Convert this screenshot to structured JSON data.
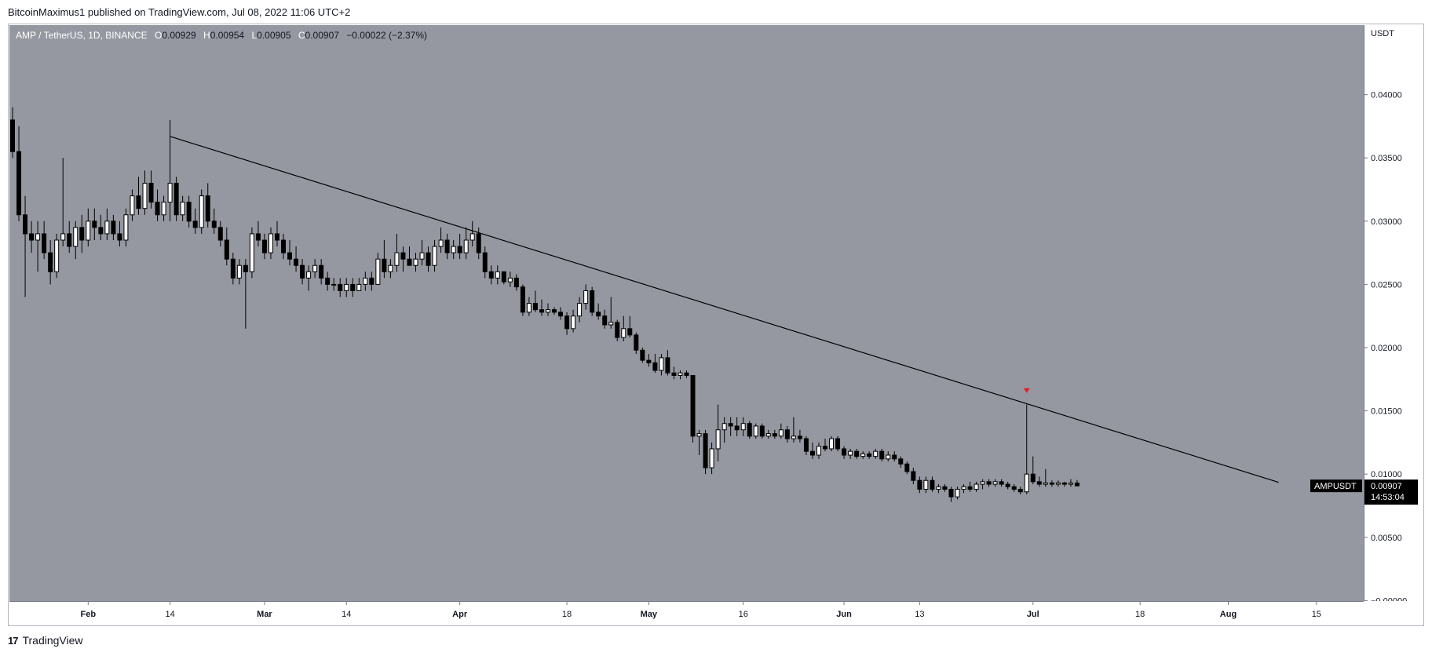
{
  "header": {
    "publisher_text": "BitcoinMaximus1 published on TradingView.com, Jul 08, 2022 11:06 UTC+2"
  },
  "legend": {
    "symbol": "AMP / TetherUS, 1D, BINANCE",
    "o_label": "O",
    "o_value": "0.00929",
    "h_label": "H",
    "h_value": "0.00954",
    "l_label": "L",
    "l_value": "0.00905",
    "c_label": "C",
    "c_value": "0.00907",
    "change": "−0.00022 (−2.37%)"
  },
  "price_scale": {
    "currency": "USDT"
  },
  "price_label": {
    "ticker": "AMPUSDT",
    "price": "0.00907",
    "countdown": "14:53:04"
  },
  "footer": {
    "brand": "TradingView",
    "logo_mark": "17"
  },
  "colors": {
    "plot_bg": "#9598a1",
    "bull_body": "#ffffff",
    "bear_body": "#000000",
    "wick": "#000000",
    "trendline": "#000000",
    "marker": "#e02020",
    "price_label_bg": "#000000"
  },
  "chart_data": {
    "type": "candlestick",
    "series_note": "",
    "ylim": [
      -4e-05,
      0.0455
    ],
    "y_ticks": [
      "0.04000",
      "0.03500",
      "0.03000",
      "0.02500",
      "0.02000",
      "0.01500",
      "0.01000",
      "0.00500",
      "−0.00000"
    ],
    "y_tick_values": [
      0.04,
      0.035,
      0.03,
      0.025,
      0.02,
      0.015,
      0.01,
      0.005,
      0.0
    ],
    "x_ticks": [
      "Feb",
      "14",
      "Mar",
      "14",
      "Apr",
      "18",
      "May",
      "16",
      "Jun",
      "13",
      "Jul",
      "18",
      "Aug",
      "15"
    ],
    "x_tick_dates": [
      "2022-02-01",
      "2022-02-14",
      "2022-03-01",
      "2022-03-14",
      "2022-04-01",
      "2022-04-18",
      "2022-05-01",
      "2022-05-16",
      "2022-06-01",
      "2022-06-13",
      "2022-07-01",
      "2022-07-18",
      "2022-08-01",
      "2022-08-15"
    ],
    "x_range": [
      "2022-01-20",
      "2022-08-23"
    ],
    "ohlc": [
      [
        "2022-01-20",
        0.038,
        0.039,
        0.035,
        0.0355
      ],
      [
        "2022-01-21",
        0.0355,
        0.0375,
        0.03,
        0.0305
      ],
      [
        "2022-01-22",
        0.0305,
        0.032,
        0.024,
        0.029
      ],
      [
        "2022-01-23",
        0.029,
        0.03,
        0.0275,
        0.0285
      ],
      [
        "2022-01-24",
        0.0285,
        0.03,
        0.026,
        0.029
      ],
      [
        "2022-01-25",
        0.029,
        0.03,
        0.027,
        0.0275
      ],
      [
        "2022-01-26",
        0.0275,
        0.0285,
        0.025,
        0.026
      ],
      [
        "2022-01-27",
        0.026,
        0.029,
        0.0255,
        0.0285
      ],
      [
        "2022-01-28",
        0.0285,
        0.035,
        0.028,
        0.029
      ],
      [
        "2022-01-29",
        0.029,
        0.03,
        0.0275,
        0.028
      ],
      [
        "2022-01-30",
        0.028,
        0.03,
        0.027,
        0.0295
      ],
      [
        "2022-01-31",
        0.0295,
        0.0305,
        0.0275,
        0.0285
      ],
      [
        "2022-02-01",
        0.0285,
        0.031,
        0.028,
        0.03
      ],
      [
        "2022-02-02",
        0.03,
        0.031,
        0.0285,
        0.0295
      ],
      [
        "2022-02-03",
        0.0295,
        0.0305,
        0.0285,
        0.029
      ],
      [
        "2022-02-04",
        0.029,
        0.031,
        0.0285,
        0.03
      ],
      [
        "2022-02-05",
        0.03,
        0.0305,
        0.0285,
        0.029
      ],
      [
        "2022-02-06",
        0.029,
        0.03,
        0.028,
        0.0285
      ],
      [
        "2022-02-07",
        0.0285,
        0.031,
        0.028,
        0.0305
      ],
      [
        "2022-02-08",
        0.0305,
        0.0325,
        0.03,
        0.032
      ],
      [
        "2022-02-09",
        0.032,
        0.0335,
        0.0305,
        0.031
      ],
      [
        "2022-02-10",
        0.031,
        0.034,
        0.0305,
        0.033
      ],
      [
        "2022-02-11",
        0.033,
        0.034,
        0.031,
        0.0315
      ],
      [
        "2022-02-12",
        0.0315,
        0.0325,
        0.03,
        0.0305
      ],
      [
        "2022-02-13",
        0.0305,
        0.032,
        0.03,
        0.0315
      ],
      [
        "2022-02-14",
        0.0315,
        0.038,
        0.03,
        0.033
      ],
      [
        "2022-02-15",
        0.033,
        0.0335,
        0.03,
        0.0305
      ],
      [
        "2022-02-16",
        0.0305,
        0.032,
        0.03,
        0.0315
      ],
      [
        "2022-02-17",
        0.0315,
        0.032,
        0.0295,
        0.03
      ],
      [
        "2022-02-18",
        0.03,
        0.031,
        0.029,
        0.0295
      ],
      [
        "2022-02-19",
        0.0295,
        0.0325,
        0.029,
        0.032
      ],
      [
        "2022-02-20",
        0.032,
        0.033,
        0.0295,
        0.03
      ],
      [
        "2022-02-21",
        0.03,
        0.031,
        0.029,
        0.0295
      ],
      [
        "2022-02-22",
        0.0295,
        0.03,
        0.028,
        0.0285
      ],
      [
        "2022-02-23",
        0.0285,
        0.0295,
        0.0265,
        0.027
      ],
      [
        "2022-02-24",
        0.027,
        0.0275,
        0.025,
        0.0255
      ],
      [
        "2022-02-25",
        0.0255,
        0.027,
        0.025,
        0.0265
      ],
      [
        "2022-02-26",
        0.0265,
        0.027,
        0.0215,
        0.026
      ],
      [
        "2022-02-27",
        0.026,
        0.0295,
        0.0255,
        0.029
      ],
      [
        "2022-02-28",
        0.029,
        0.03,
        0.028,
        0.0285
      ],
      [
        "2022-03-01",
        0.0285,
        0.029,
        0.027,
        0.0275
      ],
      [
        "2022-03-02",
        0.0275,
        0.0295,
        0.027,
        0.029
      ],
      [
        "2022-03-03",
        0.029,
        0.03,
        0.028,
        0.0285
      ],
      [
        "2022-03-04",
        0.0285,
        0.029,
        0.027,
        0.0275
      ],
      [
        "2022-03-05",
        0.0275,
        0.0285,
        0.0265,
        0.027
      ],
      [
        "2022-03-06",
        0.027,
        0.028,
        0.026,
        0.0265
      ],
      [
        "2022-03-07",
        0.0265,
        0.027,
        0.025,
        0.0255
      ],
      [
        "2022-03-08",
        0.0255,
        0.0265,
        0.0245,
        0.026
      ],
      [
        "2022-03-09",
        0.026,
        0.027,
        0.0255,
        0.0265
      ],
      [
        "2022-03-10",
        0.0265,
        0.027,
        0.025,
        0.0255
      ],
      [
        "2022-03-11",
        0.0255,
        0.026,
        0.0245,
        0.025
      ],
      [
        "2022-03-12",
        0.025,
        0.0255,
        0.0245,
        0.025
      ],
      [
        "2022-03-13",
        0.025,
        0.0255,
        0.024,
        0.0245
      ],
      [
        "2022-03-14",
        0.0245,
        0.0255,
        0.024,
        0.025
      ],
      [
        "2022-03-15",
        0.025,
        0.0255,
        0.024,
        0.0245
      ],
      [
        "2022-03-16",
        0.0245,
        0.0255,
        0.0245,
        0.025
      ],
      [
        "2022-03-17",
        0.025,
        0.026,
        0.0245,
        0.0255
      ],
      [
        "2022-03-18",
        0.0255,
        0.026,
        0.0245,
        0.025
      ],
      [
        "2022-03-19",
        0.025,
        0.0275,
        0.025,
        0.027
      ],
      [
        "2022-03-20",
        0.027,
        0.0285,
        0.0255,
        0.026
      ],
      [
        "2022-03-21",
        0.026,
        0.027,
        0.0255,
        0.0265
      ],
      [
        "2022-03-22",
        0.0265,
        0.029,
        0.026,
        0.0275
      ],
      [
        "2022-03-23",
        0.0275,
        0.028,
        0.026,
        0.027
      ],
      [
        "2022-03-24",
        0.027,
        0.028,
        0.0265,
        0.0265
      ],
      [
        "2022-03-25",
        0.0265,
        0.0275,
        0.026,
        0.027
      ],
      [
        "2022-03-26",
        0.027,
        0.0285,
        0.0265,
        0.0275
      ],
      [
        "2022-03-27",
        0.0275,
        0.028,
        0.026,
        0.0265
      ],
      [
        "2022-03-28",
        0.0265,
        0.0285,
        0.026,
        0.028
      ],
      [
        "2022-03-29",
        0.028,
        0.0295,
        0.0275,
        0.0285
      ],
      [
        "2022-03-30",
        0.0285,
        0.029,
        0.027,
        0.0275
      ],
      [
        "2022-03-31",
        0.0275,
        0.0285,
        0.027,
        0.028
      ],
      [
        "2022-04-01",
        0.028,
        0.029,
        0.027,
        0.0275
      ],
      [
        "2022-04-02",
        0.0275,
        0.0295,
        0.027,
        0.0285
      ],
      [
        "2022-04-03",
        0.0285,
        0.03,
        0.028,
        0.029
      ],
      [
        "2022-04-04",
        0.029,
        0.0295,
        0.027,
        0.0275
      ],
      [
        "2022-04-05",
        0.0275,
        0.028,
        0.0255,
        0.026
      ],
      [
        "2022-04-06",
        0.026,
        0.0265,
        0.025,
        0.0255
      ],
      [
        "2022-04-07",
        0.0255,
        0.0265,
        0.025,
        0.026
      ],
      [
        "2022-04-08",
        0.026,
        0.026,
        0.025,
        0.0252
      ],
      [
        "2022-04-09",
        0.0252,
        0.026,
        0.0248,
        0.0255
      ],
      [
        "2022-04-10",
        0.0255,
        0.0258,
        0.0245,
        0.0248
      ],
      [
        "2022-04-11",
        0.0248,
        0.025,
        0.0225,
        0.0228
      ],
      [
        "2022-04-12",
        0.0228,
        0.024,
        0.0225,
        0.0235
      ],
      [
        "2022-04-13",
        0.0235,
        0.0245,
        0.0228,
        0.023
      ],
      [
        "2022-04-14",
        0.023,
        0.0238,
        0.0225,
        0.0228
      ],
      [
        "2022-04-15",
        0.0228,
        0.0235,
        0.0225,
        0.023
      ],
      [
        "2022-04-16",
        0.023,
        0.0232,
        0.0226,
        0.0228
      ],
      [
        "2022-04-17",
        0.0228,
        0.0232,
        0.0222,
        0.0225
      ],
      [
        "2022-04-18",
        0.0225,
        0.0228,
        0.021,
        0.0215
      ],
      [
        "2022-04-19",
        0.0215,
        0.023,
        0.0212,
        0.0225
      ],
      [
        "2022-04-20",
        0.0225,
        0.024,
        0.022,
        0.0235
      ],
      [
        "2022-04-21",
        0.0235,
        0.025,
        0.023,
        0.0245
      ],
      [
        "2022-04-22",
        0.0245,
        0.0248,
        0.0225,
        0.0228
      ],
      [
        "2022-04-23",
        0.0228,
        0.0235,
        0.0222,
        0.0225
      ],
      [
        "2022-04-24",
        0.0225,
        0.023,
        0.0215,
        0.0218
      ],
      [
        "2022-04-25",
        0.0218,
        0.024,
        0.0215,
        0.022
      ],
      [
        "2022-04-26",
        0.022,
        0.0222,
        0.0205,
        0.0208
      ],
      [
        "2022-04-27",
        0.0208,
        0.0225,
        0.0205,
        0.0215
      ],
      [
        "2022-04-28",
        0.0215,
        0.0225,
        0.0208,
        0.021
      ],
      [
        "2022-04-29",
        0.021,
        0.0212,
        0.0195,
        0.0198
      ],
      [
        "2022-04-30",
        0.0198,
        0.02,
        0.0188,
        0.019
      ],
      [
        "2022-05-01",
        0.019,
        0.0195,
        0.0185,
        0.0188
      ],
      [
        "2022-05-02",
        0.0188,
        0.0195,
        0.018,
        0.0182
      ],
      [
        "2022-05-03",
        0.0182,
        0.0195,
        0.0178,
        0.0192
      ],
      [
        "2022-05-04",
        0.0192,
        0.0198,
        0.0178,
        0.018
      ],
      [
        "2022-05-05",
        0.018,
        0.0185,
        0.0175,
        0.0178
      ],
      [
        "2022-05-06",
        0.0178,
        0.0182,
        0.0175,
        0.018
      ],
      [
        "2022-05-07",
        0.018,
        0.0182,
        0.0176,
        0.0178
      ],
      [
        "2022-05-08",
        0.0178,
        0.0178,
        0.0125,
        0.013
      ],
      [
        "2022-05-09",
        0.013,
        0.0135,
        0.0115,
        0.0132
      ],
      [
        "2022-05-10",
        0.0132,
        0.0135,
        0.01,
        0.0105
      ],
      [
        "2022-05-11",
        0.0105,
        0.0125,
        0.01,
        0.012
      ],
      [
        "2022-05-12",
        0.012,
        0.0155,
        0.011,
        0.0135
      ],
      [
        "2022-05-13",
        0.0135,
        0.0145,
        0.0125,
        0.014
      ],
      [
        "2022-05-14",
        0.014,
        0.0145,
        0.013,
        0.0138
      ],
      [
        "2022-05-15",
        0.0138,
        0.0145,
        0.013,
        0.0135
      ],
      [
        "2022-05-16",
        0.0135,
        0.0145,
        0.013,
        0.014
      ],
      [
        "2022-05-17",
        0.014,
        0.0142,
        0.0128,
        0.013
      ],
      [
        "2022-05-18",
        0.013,
        0.014,
        0.0128,
        0.0138
      ],
      [
        "2022-05-19",
        0.0138,
        0.014,
        0.0128,
        0.013
      ],
      [
        "2022-05-20",
        0.013,
        0.0135,
        0.0128,
        0.0132
      ],
      [
        "2022-05-21",
        0.0132,
        0.0135,
        0.0128,
        0.013
      ],
      [
        "2022-05-22",
        0.013,
        0.014,
        0.0128,
        0.0135
      ],
      [
        "2022-05-23",
        0.0135,
        0.0138,
        0.0125,
        0.0128
      ],
      [
        "2022-05-24",
        0.0128,
        0.0145,
        0.0125,
        0.013
      ],
      [
        "2022-05-25",
        0.013,
        0.0135,
        0.0125,
        0.0128
      ],
      [
        "2022-05-26",
        0.0128,
        0.013,
        0.0115,
        0.0118
      ],
      [
        "2022-05-27",
        0.0118,
        0.0125,
        0.0112,
        0.0115
      ],
      [
        "2022-05-28",
        0.0115,
        0.0125,
        0.0112,
        0.0122
      ],
      [
        "2022-05-29",
        0.0122,
        0.0128,
        0.0118,
        0.012
      ],
      [
        "2022-05-30",
        0.012,
        0.013,
        0.0118,
        0.0128
      ],
      [
        "2022-05-31",
        0.0128,
        0.013,
        0.0118,
        0.012
      ],
      [
        "2022-06-01",
        0.012,
        0.0122,
        0.0112,
        0.0115
      ],
      [
        "2022-06-02",
        0.0115,
        0.012,
        0.0112,
        0.0118
      ],
      [
        "2022-06-03",
        0.0118,
        0.012,
        0.0112,
        0.0114
      ],
      [
        "2022-06-04",
        0.0114,
        0.0118,
        0.0112,
        0.0116
      ],
      [
        "2022-06-05",
        0.0116,
        0.0118,
        0.0112,
        0.0114
      ],
      [
        "2022-06-06",
        0.0114,
        0.012,
        0.0112,
        0.0118
      ],
      [
        "2022-06-07",
        0.0118,
        0.012,
        0.011,
        0.0112
      ],
      [
        "2022-06-08",
        0.0112,
        0.0118,
        0.011,
        0.0115
      ],
      [
        "2022-06-09",
        0.0115,
        0.0118,
        0.011,
        0.0112
      ],
      [
        "2022-06-10",
        0.0112,
        0.0114,
        0.0105,
        0.0108
      ],
      [
        "2022-06-11",
        0.0108,
        0.011,
        0.01,
        0.0102
      ],
      [
        "2022-06-12",
        0.0102,
        0.0105,
        0.0092,
        0.0095
      ],
      [
        "2022-06-13",
        0.0095,
        0.0098,
        0.0085,
        0.0088
      ],
      [
        "2022-06-14",
        0.0088,
        0.0098,
        0.0085,
        0.0095
      ],
      [
        "2022-06-15",
        0.0095,
        0.0098,
        0.0086,
        0.0088
      ],
      [
        "2022-06-16",
        0.0088,
        0.0092,
        0.0085,
        0.009
      ],
      [
        "2022-06-17",
        0.009,
        0.0092,
        0.0086,
        0.0088
      ],
      [
        "2022-06-18",
        0.0088,
        0.009,
        0.0078,
        0.0082
      ],
      [
        "2022-06-19",
        0.0082,
        0.009,
        0.008,
        0.0088
      ],
      [
        "2022-06-20",
        0.0088,
        0.0092,
        0.0085,
        0.009
      ],
      [
        "2022-06-21",
        0.009,
        0.0094,
        0.0086,
        0.0088
      ],
      [
        "2022-06-22",
        0.0088,
        0.0094,
        0.0086,
        0.0092
      ],
      [
        "2022-06-23",
        0.0092,
        0.0096,
        0.0088,
        0.0094
      ],
      [
        "2022-06-24",
        0.0094,
        0.0096,
        0.009,
        0.0092
      ],
      [
        "2022-06-25",
        0.0092,
        0.0096,
        0.009,
        0.0094
      ],
      [
        "2022-06-26",
        0.0094,
        0.0096,
        0.009,
        0.0092
      ],
      [
        "2022-06-27",
        0.0092,
        0.0094,
        0.0088,
        0.009
      ],
      [
        "2022-06-28",
        0.009,
        0.0092,
        0.0086,
        0.0088
      ],
      [
        "2022-06-29",
        0.0088,
        0.009,
        0.0084,
        0.0086
      ],
      [
        "2022-06-30",
        0.0086,
        0.0155,
        0.0084,
        0.01
      ],
      [
        "2022-07-01",
        0.01,
        0.0114,
        0.0092,
        0.0094
      ],
      [
        "2022-07-02",
        0.0094,
        0.0098,
        0.009,
        0.0092
      ],
      [
        "2022-07-03",
        0.0092,
        0.0104,
        0.009,
        0.0093
      ],
      [
        "2022-07-04",
        0.0093,
        0.0095,
        0.009,
        0.0092
      ],
      [
        "2022-07-05",
        0.0092,
        0.0095,
        0.009,
        0.0093
      ],
      [
        "2022-07-06",
        0.0093,
        0.0094,
        0.009,
        0.0092
      ],
      [
        "2022-07-07",
        0.0092,
        0.0096,
        0.009,
        0.00929
      ],
      [
        "2022-07-08",
        0.00929,
        0.00954,
        0.00905,
        0.00907
      ]
    ],
    "annotations": {
      "trendline": {
        "start": [
          "2022-02-14",
          0.0367
        ],
        "end": [
          "2022-08-09",
          0.00935
        ]
      },
      "marker": {
        "date": "2022-06-30",
        "price": 0.0166,
        "shape": "down-triangle"
      }
    }
  }
}
